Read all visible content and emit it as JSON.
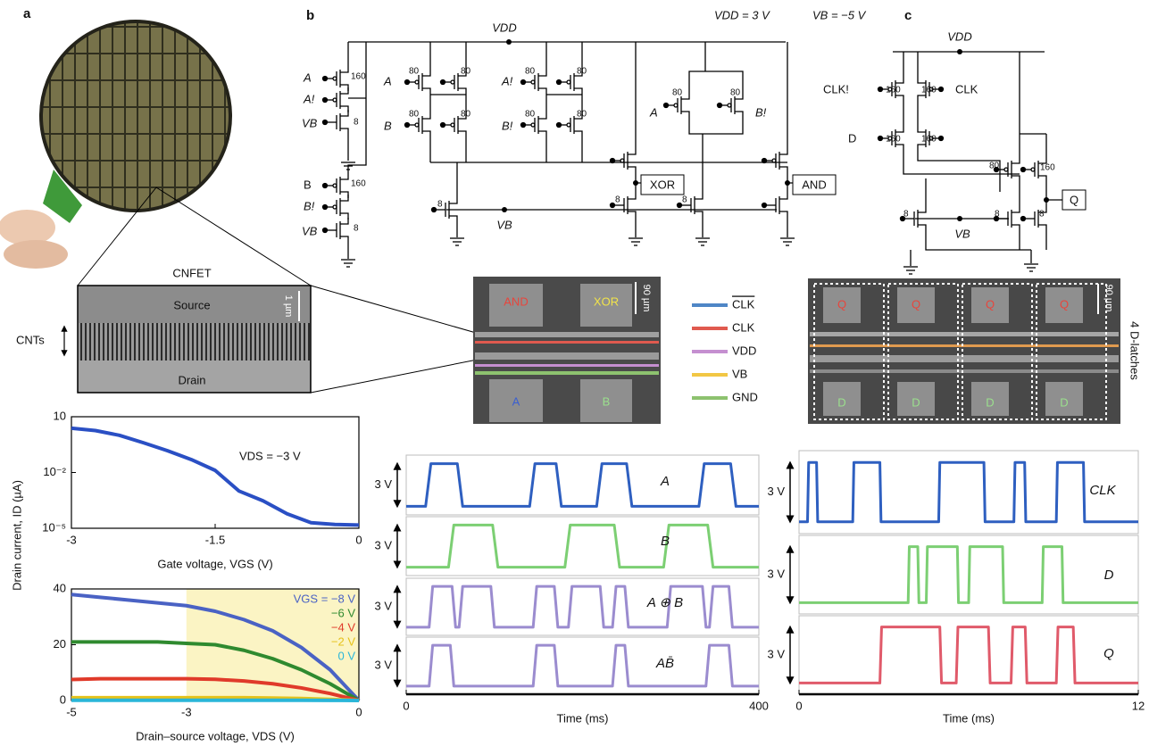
{
  "panel_labels": [
    "a",
    "b",
    "c"
  ],
  "supply": {
    "vdd": "VDD = 3 V",
    "vb": "VB = −5 V"
  },
  "panel_a": {
    "sem_title": "CNFET",
    "source": "Source",
    "drain": "Drain",
    "scale": "1 µm",
    "cnts": "CNTs",
    "y_axis_label": "Drain current, ID (µA)"
  },
  "circuit_b": {
    "labels": [
      "VDD",
      "A",
      "A!",
      "VB",
      "160",
      "8",
      "B",
      "B!",
      "VB",
      "160",
      "8",
      "A",
      "B",
      "A!",
      "B!",
      "80",
      "80",
      "80",
      "80",
      "80",
      "80",
      "80",
      "80",
      "VB",
      "8",
      "8",
      "8",
      "A",
      "B!",
      "80",
      "80",
      "XOR",
      "AND"
    ]
  },
  "circuit_c": {
    "labels": [
      "VDD",
      "CLK!",
      "160",
      "160",
      "CLK",
      "D",
      "160",
      "160",
      "80",
      "160",
      "Q",
      "8",
      "VB",
      "8",
      "8"
    ]
  },
  "micrograph_b": {
    "labels": [
      "AND",
      "XOR",
      "A",
      "B"
    ],
    "scale": "90 µm"
  },
  "micrograph_c": {
    "q": [
      "Q",
      "Q",
      "Q",
      "Q"
    ],
    "d": [
      "D",
      "D",
      "D",
      "D"
    ],
    "scale": "90 µm",
    "caption": "4 D-latches"
  },
  "wire_legend": [
    {
      "name": "CLK",
      "overline": true,
      "color": "#4f86c6"
    },
    {
      "name": "CLK",
      "color": "#e05a4f"
    },
    {
      "name": "VDD",
      "color": "#c58fd0"
    },
    {
      "name": "VB",
      "color": "#f2c744"
    },
    {
      "name": "GND",
      "color": "#8dc26f"
    }
  ],
  "chart_data": [
    {
      "type": "line",
      "yscale": "log",
      "xlim": [
        -3,
        0
      ],
      "ylim": [
        1e-05,
        10
      ],
      "xticks": [
        -3,
        -1.5,
        0
      ],
      "yticks": [
        10,
        {
          "value": 0.01,
          "label": "10⁻²"
        },
        {
          "value": 1e-05,
          "label": "10⁻⁵"
        }
      ],
      "x": [
        -3,
        -2.75,
        -2.5,
        -2.25,
        -2,
        -1.75,
        -1.5,
        -1.25,
        -1,
        -0.75,
        -0.5,
        -0.25,
        0
      ],
      "series": [
        {
          "color": "#2a4fc4",
          "values": [
            2.4,
            1.8,
            1.0,
            0.4,
            0.15,
            0.05,
            0.013,
            0.001,
            0.0003,
            6e-05,
            2e-05,
            1.6e-05,
            1.5e-05
          ]
        }
      ],
      "annotation": "VDS = −3 V",
      "x_label": "Gate voltage, VGS (V)"
    },
    {
      "type": "line",
      "xlim": [
        -5,
        0
      ],
      "ylim": [
        0,
        40
      ],
      "xticks": [
        -5,
        -3,
        0
      ],
      "yticks": [
        0,
        20,
        40
      ],
      "highlight_xlim": [
        -3,
        0
      ],
      "highlight_color": "#fbf4c4",
      "legend": "upper right",
      "x": [
        -5,
        -4.5,
        -4,
        -3.5,
        -3,
        -2.5,
        -2,
        -1.5,
        -1,
        -0.5,
        0
      ],
      "series": [
        {
          "name": "VGS = −8 V",
          "color": "#4a62c4",
          "values": [
            38,
            37,
            36,
            35,
            34,
            32,
            29,
            25,
            19,
            11,
            0
          ]
        },
        {
          "name": "−6 V",
          "color": "#2f8a2f",
          "values": [
            21,
            21,
            21,
            21,
            20.5,
            20,
            18,
            15,
            11,
            6,
            0
          ]
        },
        {
          "name": "−4 V",
          "color": "#e03a2a",
          "values": [
            7.5,
            7.8,
            7.8,
            7.8,
            7.8,
            7.6,
            7,
            6,
            4.5,
            2.5,
            0
          ]
        },
        {
          "name": "−2 V",
          "color": "#e6c21a",
          "values": [
            1,
            1,
            1,
            1,
            1,
            1,
            1,
            0.9,
            0.7,
            0.4,
            0
          ]
        },
        {
          "name": "0 V",
          "color": "#29b6d9",
          "values": [
            0.1,
            0.1,
            0.1,
            0.1,
            0.1,
            0.1,
            0.1,
            0.1,
            0.1,
            0.05,
            0
          ]
        }
      ],
      "x_label": "Drain–source voltage, VDS (V)"
    },
    {
      "type": "line",
      "xlim": [
        0,
        400
      ],
      "ylim": [
        -0.6,
        3.6
      ],
      "amplitude": {
        "value": 3,
        "label": "3 V"
      },
      "annotation": "A",
      "x": [
        0,
        22,
        28,
        58,
        64,
        140,
        146,
        170,
        176,
        216,
        222,
        250,
        256,
        332,
        338,
        368,
        374,
        400
      ],
      "series": [
        {
          "color": "#2e5fc0",
          "values": [
            0,
            0,
            3,
            3,
            0,
            0,
            3,
            3,
            0,
            0,
            3,
            3,
            0,
            0,
            3,
            3,
            0,
            0
          ]
        }
      ]
    },
    {
      "type": "line",
      "xlim": [
        0,
        400
      ],
      "ylim": [
        -0.6,
        3.6
      ],
      "amplitude": {
        "value": 3,
        "label": "3 V"
      },
      "annotation": "B",
      "x": [
        0,
        48,
        54,
        98,
        104,
        180,
        186,
        236,
        242,
        292,
        298,
        342,
        348,
        400
      ],
      "series": [
        {
          "color": "#7ccf73",
          "values": [
            0,
            0,
            3,
            3,
            0,
            0,
            3,
            3,
            0,
            0,
            3,
            3,
            0,
            0
          ]
        }
      ]
    },
    {
      "type": "line",
      "xlim": [
        0,
        400
      ],
      "ylim": [
        -0.6,
        3.6
      ],
      "amplitude": {
        "value": 3,
        "label": "3 V"
      },
      "annotation": "A ⊕ B",
      "x": [
        0,
        26,
        30,
        52,
        56,
        60,
        64,
        96,
        100,
        144,
        148,
        168,
        172,
        184,
        188,
        220,
        224,
        234,
        238,
        248,
        252,
        296,
        300,
        336,
        340,
        344,
        348,
        366,
        370,
        400
      ],
      "series": [
        {
          "color": "#9b8ccf",
          "values": [
            0,
            0,
            3,
            3,
            0,
            0,
            3,
            3,
            0,
            0,
            3,
            3,
            0,
            0,
            3,
            3,
            0,
            0,
            3,
            3,
            0,
            0,
            3,
            3,
            0,
            0,
            3,
            3,
            0,
            0
          ]
        }
      ]
    },
    {
      "type": "line",
      "xlim": [
        0,
        400
      ],
      "ylim": [
        -0.6,
        3.6
      ],
      "amplitude": {
        "value": 3,
        "label": "3 V"
      },
      "annotation": "AB̄",
      "xticks": [
        0,
        400
      ],
      "x_label": "Time (ms)",
      "x": [
        0,
        26,
        30,
        50,
        54,
        144,
        148,
        168,
        172,
        234,
        238,
        248,
        252,
        340,
        344,
        366,
        370,
        400
      ],
      "series": [
        {
          "color": "#9b8ccf",
          "values": [
            0,
            0,
            3,
            3,
            0,
            0,
            3,
            3,
            0,
            0,
            3,
            3,
            0,
            0,
            3,
            3,
            0,
            0
          ]
        }
      ]
    },
    {
      "type": "line",
      "xlim": [
        0,
        12
      ],
      "ylim": [
        -0.6,
        3.6
      ],
      "amplitude": {
        "value": 3,
        "label": "3 V"
      },
      "annotation": "CLK",
      "x": [
        0,
        0.3,
        0.34,
        0.62,
        0.66,
        1.9,
        1.94,
        2.86,
        2.9,
        4.94,
        4.98,
        6.54,
        6.58,
        7.6,
        7.64,
        7.98,
        8.02,
        9.1,
        9.14,
        10.06,
        10.1,
        12
      ],
      "series": [
        {
          "color": "#2e5fc0",
          "values": [
            0,
            0,
            3,
            3,
            0,
            0,
            3,
            3,
            0,
            0,
            3,
            3,
            0,
            0,
            3,
            3,
            0,
            0,
            3,
            3,
            0,
            0
          ]
        }
      ]
    },
    {
      "type": "line",
      "xlim": [
        0,
        12
      ],
      "ylim": [
        -0.6,
        3.6
      ],
      "amplitude": {
        "value": 3,
        "label": "3 V"
      },
      "annotation": "D",
      "x": [
        0,
        3.86,
        3.9,
        4.2,
        4.24,
        4.5,
        4.54,
        5.6,
        5.64,
        6.0,
        6.04,
        7.2,
        7.24,
        8.6,
        8.64,
        9.3,
        9.34,
        12
      ],
      "series": [
        {
          "color": "#7ccf73",
          "values": [
            0,
            0,
            3,
            3,
            0,
            0,
            3,
            3,
            0,
            0,
            3,
            3,
            0,
            0,
            3,
            3,
            0,
            0
          ]
        }
      ]
    },
    {
      "type": "line",
      "xlim": [
        0,
        12
      ],
      "ylim": [
        -0.6,
        3.6
      ],
      "amplitude": {
        "value": 3,
        "label": "3 V"
      },
      "annotation": "Q",
      "xticks": [
        0,
        12
      ],
      "x_label": "Time (ms)",
      "x": [
        0,
        2.86,
        2.92,
        4.98,
        5.04,
        5.56,
        5.62,
        6.7,
        6.76,
        7.5,
        7.56,
        8.0,
        8.06,
        9.1,
        9.16,
        9.7,
        9.76,
        12
      ],
      "series": [
        {
          "color": "#e05a6a",
          "values": [
            0,
            0,
            3,
            3,
            0,
            0,
            3,
            3,
            0,
            0,
            3,
            3,
            0,
            0,
            3,
            3,
            0,
            0
          ]
        }
      ]
    }
  ]
}
